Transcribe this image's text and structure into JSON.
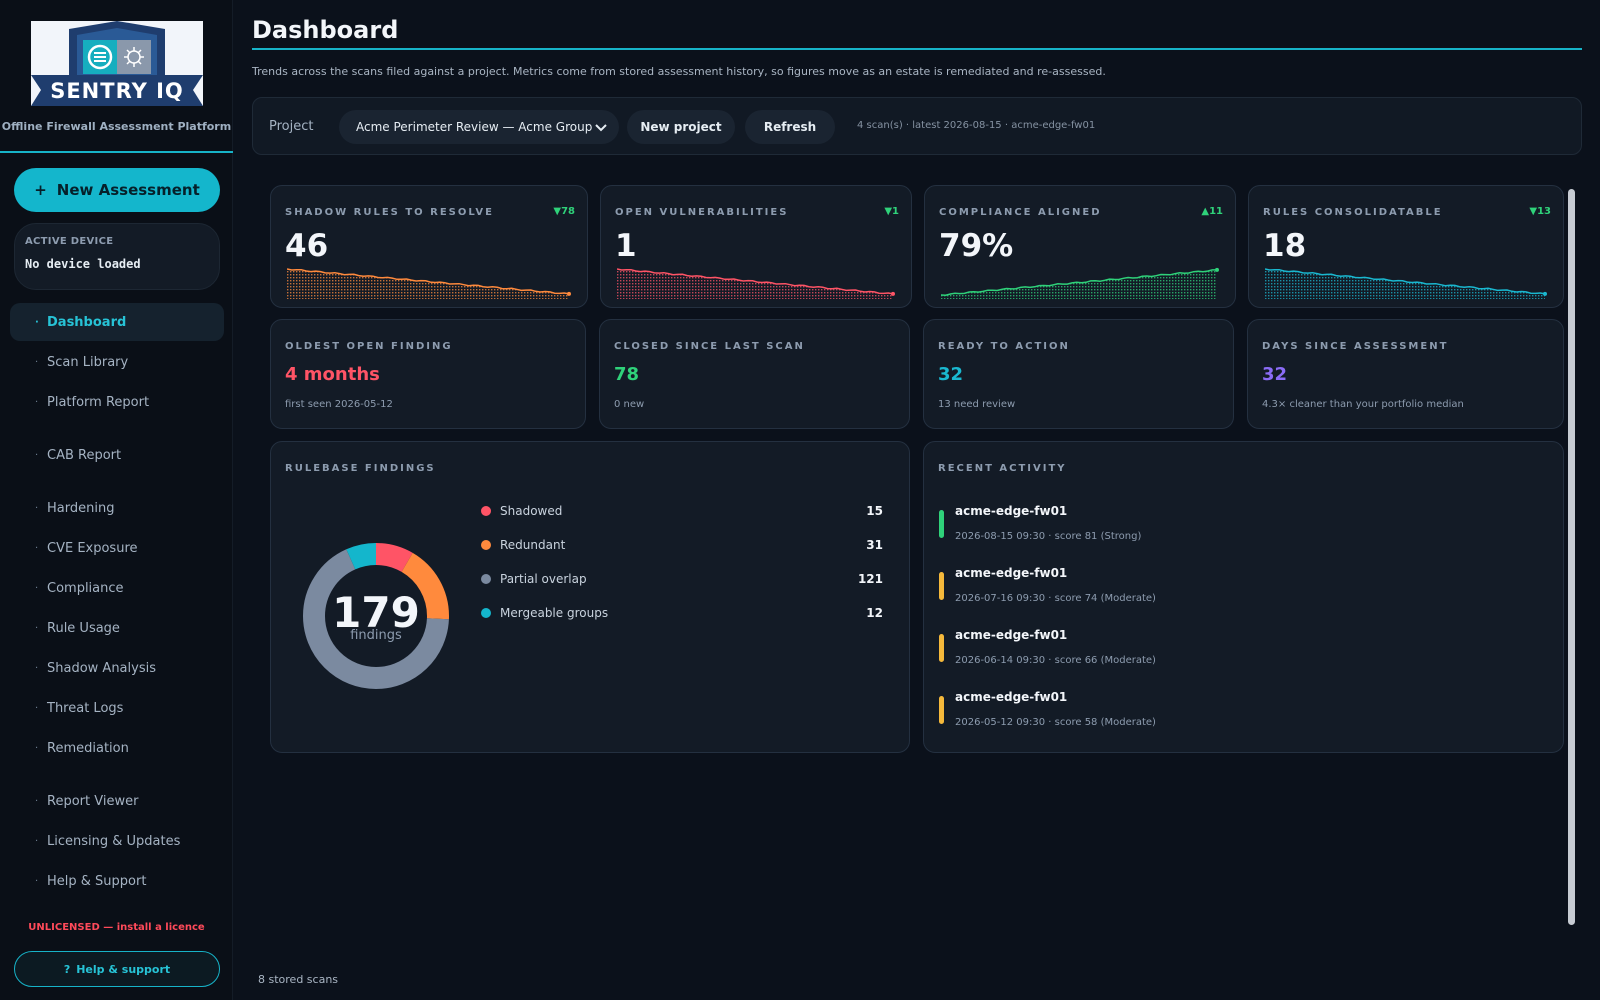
{
  "sidebar": {
    "brand": "SENTRY IQ",
    "tagline": "Offline Firewall Assessment Platform",
    "new_assessment": "New Assessment",
    "new_assessment_icon": "+",
    "active_device_label": "ACTIVE DEVICE",
    "active_device_value": "No device loaded",
    "nav": [
      {
        "label": "Dashboard",
        "active": true
      },
      {
        "label": "Scan Library"
      },
      {
        "label": "Platform Report"
      },
      {
        "label": "CAB Report"
      },
      {
        "label": "Hardening"
      },
      {
        "label": "CVE Exposure"
      },
      {
        "label": "Compliance"
      },
      {
        "label": "Rule Usage"
      },
      {
        "label": "Shadow Analysis"
      },
      {
        "label": "Threat Logs"
      },
      {
        "label": "Remediation"
      },
      {
        "label": "Report Viewer"
      },
      {
        "label": "Licensing & Updates"
      },
      {
        "label": "Help & Support"
      }
    ],
    "bullet": "·",
    "license_warning": "UNLICENSED — install a licence",
    "help_button": "Help & support",
    "help_icon": "?"
  },
  "header": {
    "title": "Dashboard",
    "subtitle": "Trends across the scans filed against a project. Metrics come from stored assessment history, so figures move as an estate is remediated and re-assessed."
  },
  "project_bar": {
    "label": "Project",
    "selected_project": "Acme Perimeter Review — Acme Group",
    "new_project": "New project",
    "refresh": "Refresh",
    "meta": "4 scan(s) · latest 2026-08-15 · acme-edge-fw01"
  },
  "kpis": [
    {
      "label": "SHADOW RULES TO RESOLVE",
      "delta": "▼78",
      "value": "46",
      "color": "#ff8a3d",
      "trend": "down"
    },
    {
      "label": "OPEN VULNERABILITIES",
      "delta": "▼1",
      "value": "1",
      "color": "#ff5466",
      "trend": "down"
    },
    {
      "label": "COMPLIANCE ALIGNED",
      "delta": "▲11",
      "value": "79%",
      "color": "#2fd27a",
      "trend": "up"
    },
    {
      "label": "RULES CONSOLIDATABLE",
      "delta": "▼13",
      "value": "18",
      "color": "#1ab8d0",
      "trend": "down"
    }
  ],
  "delta_color": "#2fd27a",
  "stats": [
    {
      "label": "OLDEST OPEN FINDING",
      "value": "4 months",
      "sub": "first seen 2026-05-12",
      "color": "#ff5466"
    },
    {
      "label": "CLOSED SINCE LAST SCAN",
      "value": "78",
      "sub": "0 new",
      "color": "#2fd27a"
    },
    {
      "label": "READY TO ACTION",
      "value": "32",
      "sub": "13 need review",
      "color": "#1ab8d0"
    },
    {
      "label": "DAYS SINCE ASSESSMENT",
      "value": "32",
      "sub": "4.3× cleaner than your portfolio median",
      "color": "#8b6cf6"
    }
  ],
  "findings": {
    "label": "RULEBASE FINDINGS",
    "total": "179",
    "total_label": "findings",
    "items": [
      {
        "name": "Shadowed",
        "value": 15,
        "color": "#ff5466"
      },
      {
        "name": "Redundant",
        "value": 31,
        "color": "#ff8a3d"
      },
      {
        "name": "Partial overlap",
        "value": 121,
        "color": "#7b8aa0"
      },
      {
        "name": "Mergeable groups",
        "value": 12,
        "color": "#14b6cc"
      }
    ]
  },
  "activity": {
    "label": "RECENT ACTIVITY",
    "items": [
      {
        "device": "acme-edge-fw01",
        "detail": "2026-08-15 09:30 · score 81 (Strong)",
        "color": "#2fd27a"
      },
      {
        "device": "acme-edge-fw01",
        "detail": "2026-07-16 09:30 · score 74 (Moderate)",
        "color": "#f5b93b"
      },
      {
        "device": "acme-edge-fw01",
        "detail": "2026-06-14 09:30 · score 66 (Moderate)",
        "color": "#f5b93b"
      },
      {
        "device": "acme-edge-fw01",
        "detail": "2026-05-12 09:30 · score 58 (Moderate)",
        "color": "#f5b93b"
      }
    ]
  },
  "footer": "8 stored scans"
}
